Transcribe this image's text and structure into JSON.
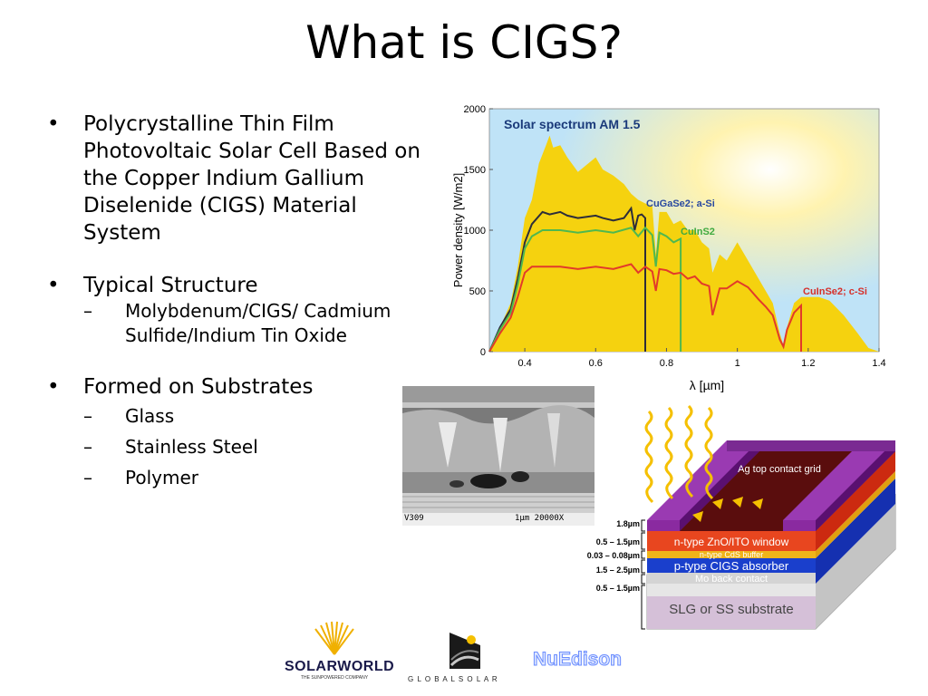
{
  "slide": {
    "title": "What is CIGS?",
    "bullets": [
      {
        "text": "Polycrystalline Thin Film Photovoltaic Solar Cell Based on the Copper Indium Gallium Diselenide (CIGS) Material System"
      },
      {
        "text": "Typical Structure",
        "sub": [
          "Molybdenum/CIGS/ Cadmium Sulfide/Indium Tin Oxide"
        ]
      },
      {
        "text": "Formed on Substrates",
        "sub": [
          "Glass",
          "Stainless Steel",
          "Polymer"
        ]
      }
    ]
  },
  "chart_data": {
    "type": "area",
    "title": "Solar spectrum AM 1.5",
    "xlabel": "λ [µm]",
    "ylabel": "Power density [W/m2]",
    "xlim": [
      0.3,
      1.4
    ],
    "ylim": [
      0,
      2000
    ],
    "xticks": [
      "0.4",
      "0.6",
      "0.8",
      "1",
      "1.2",
      "1.4"
    ],
    "yticks": [
      "0",
      "500",
      "1000",
      "1500",
      "2000"
    ],
    "series": [
      {
        "name": "",
        "color": "#f5d20f",
        "x": [
          0.3,
          0.33,
          0.36,
          0.38,
          0.4,
          0.42,
          0.44,
          0.46,
          0.47,
          0.48,
          0.5,
          0.52,
          0.55,
          0.6,
          0.62,
          0.65,
          0.68,
          0.7,
          0.72,
          0.74,
          0.76,
          0.77,
          0.78,
          0.8,
          0.82,
          0.84,
          0.86,
          0.88,
          0.9,
          0.92,
          0.93,
          0.95,
          0.97,
          1.0,
          1.03,
          1.06,
          1.08,
          1.1,
          1.12,
          1.13,
          1.14,
          1.16,
          1.18,
          1.2,
          1.23,
          1.26,
          1.3,
          1.34,
          1.37,
          1.4
        ],
        "y": [
          0,
          200,
          400,
          700,
          1100,
          1250,
          1550,
          1700,
          1780,
          1680,
          1700,
          1600,
          1480,
          1600,
          1500,
          1450,
          1380,
          1300,
          1250,
          1220,
          1200,
          800,
          1150,
          1150,
          1050,
          1080,
          1000,
          1000,
          900,
          850,
          650,
          800,
          750,
          900,
          750,
          600,
          500,
          400,
          150,
          50,
          200,
          400,
          450,
          450,
          450,
          420,
          300,
          150,
          30,
          0
        ]
      },
      {
        "name": "CuGaSe2; a-Si",
        "color": "#2d2d3a",
        "x": [
          0.3,
          0.33,
          0.36,
          0.38,
          0.4,
          0.42,
          0.45,
          0.47,
          0.5,
          0.52,
          0.55,
          0.6,
          0.62,
          0.65,
          0.68,
          0.7,
          0.71,
          0.72,
          0.73,
          0.74,
          0.74
        ],
        "y": [
          0,
          200,
          350,
          600,
          900,
          1050,
          1150,
          1130,
          1150,
          1120,
          1100,
          1120,
          1100,
          1080,
          1100,
          1180,
          1000,
          1120,
          1130,
          1100,
          0
        ]
      },
      {
        "name": "CuInS2",
        "color": "#4fb84f",
        "x": [
          0.3,
          0.33,
          0.36,
          0.38,
          0.4,
          0.42,
          0.45,
          0.5,
          0.55,
          0.6,
          0.65,
          0.7,
          0.72,
          0.74,
          0.76,
          0.77,
          0.78,
          0.8,
          0.82,
          0.84,
          0.84
        ],
        "y": [
          0,
          180,
          320,
          550,
          850,
          950,
          1000,
          1000,
          980,
          1000,
          980,
          1020,
          950,
          1020,
          960,
          700,
          980,
          950,
          900,
          930,
          0
        ]
      },
      {
        "name": "CuInSe2; c-Si",
        "color": "#e23a2a",
        "x": [
          0.3,
          0.33,
          0.36,
          0.38,
          0.4,
          0.42,
          0.45,
          0.5,
          0.55,
          0.6,
          0.65,
          0.7,
          0.72,
          0.74,
          0.76,
          0.77,
          0.78,
          0.8,
          0.82,
          0.84,
          0.86,
          0.88,
          0.9,
          0.92,
          0.93,
          0.95,
          0.97,
          1.0,
          1.03,
          1.06,
          1.08,
          1.1,
          1.12,
          1.13,
          1.14,
          1.16,
          1.18,
          1.18
        ],
        "y": [
          0,
          150,
          280,
          450,
          650,
          700,
          700,
          700,
          680,
          700,
          680,
          720,
          650,
          700,
          660,
          500,
          680,
          670,
          640,
          650,
          600,
          620,
          560,
          540,
          300,
          520,
          520,
          580,
          530,
          430,
          370,
          300,
          100,
          40,
          180,
          320,
          380,
          0
        ]
      }
    ]
  },
  "sem_image": {
    "caption_left": "V309",
    "caption_right": "1µm 20000X"
  },
  "structure_diagram": {
    "layers": [
      {
        "thickness": "1.8µm",
        "label": "Ag top contact grid",
        "color": "#7a1f8a"
      },
      {
        "thickness": "0.5 – 1.5µm",
        "label": "n-type ZnO/ITO window",
        "color": "#e8461f"
      },
      {
        "thickness": "0.03 – 0.08µm",
        "label": "n-type CdS buffer",
        "color": "#f0b41a"
      },
      {
        "thickness": "1.5 – 2.5µm",
        "label": "p-type CIGS absorber",
        "color": "#1640c8"
      },
      {
        "thickness": "0.5 – 1.5µm",
        "label": "Mo back contact",
        "color": "#d8d8d8"
      },
      {
        "thickness": "",
        "label": "SLG or SS substrate",
        "color": "#d0d0d0"
      }
    ]
  },
  "logos": {
    "solarworld": "SOLARWORLD",
    "solarworld_tag": "THE SUNPOWERED COMPANY",
    "globalsolar": "G L O B A L S O L A R",
    "nuedison": "NuEdison"
  }
}
